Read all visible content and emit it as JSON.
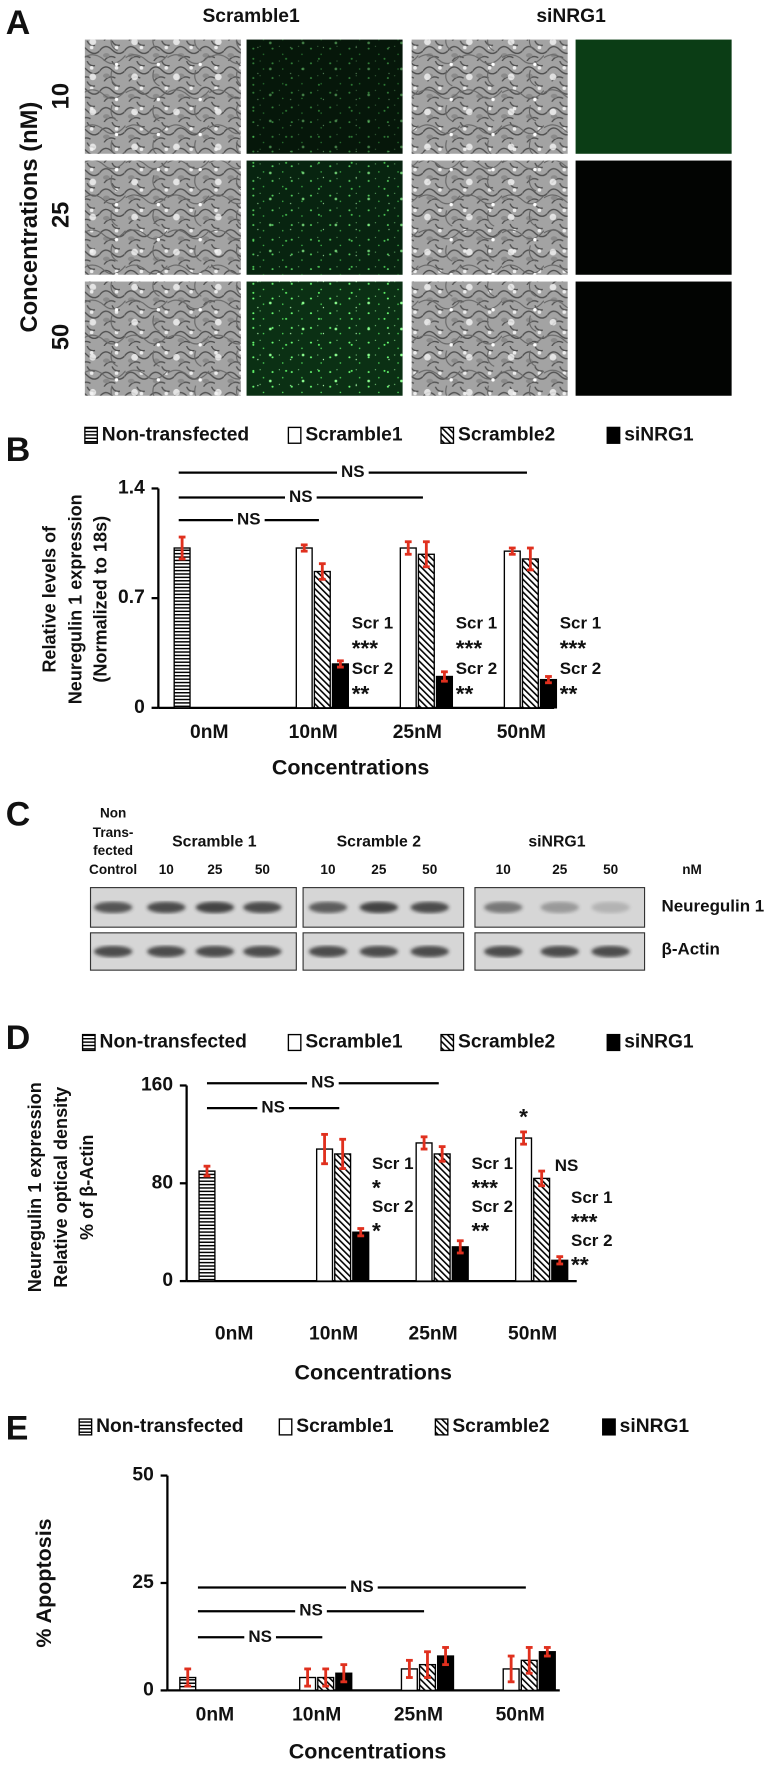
{
  "panel_a": {
    "label": "A",
    "col_headers": [
      "Scramble1",
      "siNRG1"
    ],
    "ylabel": "Concentrations (nM)",
    "rows": [
      "10",
      "25",
      "50"
    ]
  },
  "panel_c": {
    "label": "C",
    "control_label": [
      "Non",
      "Trans-",
      "fected",
      "Control"
    ],
    "groups": [
      {
        "name": "Scramble 1",
        "lanes": [
          "10",
          "25",
          "50"
        ]
      },
      {
        "name": "Scramble 2",
        "lanes": [
          "10",
          "25",
          "50"
        ]
      },
      {
        "name": "siNRG1",
        "lanes": [
          "10",
          "25",
          "50"
        ]
      }
    ],
    "unit": "nM",
    "rows": [
      "Neuregulin 1",
      "β-Actin"
    ]
  },
  "chart_data": [
    {
      "type": "bar",
      "panel": "B",
      "ylabel": [
        "Relative levels of",
        "Neuregulin 1 expression",
        "(Normalized to 18s)"
      ],
      "xlabel": "Concentrations",
      "categories": [
        "0nM",
        "10nM",
        "25nM",
        "50nM"
      ],
      "ylim": [
        0,
        1.4
      ],
      "yticks": [
        0,
        0.7,
        1.4
      ],
      "error_color": "#e0301e",
      "series": [
        {
          "name": "Non-transfected",
          "color": "#000000",
          "pattern": "horizontal",
          "values": [
            1.02,
            null,
            null,
            null
          ],
          "errors": [
            0.07,
            null,
            null,
            null
          ]
        },
        {
          "name": "Scramble1",
          "color": "#000000",
          "pattern": "none",
          "values": [
            null,
            1.02,
            1.02,
            1.0
          ],
          "errors": [
            null,
            0.02,
            0.04,
            0.02
          ]
        },
        {
          "name": "Scramble2",
          "color": "#000000",
          "pattern": "diagonal",
          "values": [
            null,
            0.87,
            0.98,
            0.95
          ],
          "errors": [
            null,
            0.05,
            0.08,
            0.07
          ]
        },
        {
          "name": "siNRG1",
          "color": "#000000",
          "pattern": "solid",
          "values": [
            null,
            0.28,
            0.2,
            0.18
          ],
          "errors": [
            null,
            0.02,
            0.03,
            0.02
          ]
        }
      ],
      "ns_brackets": [
        "NS",
        "NS",
        "NS"
      ],
      "star_labels": [
        null,
        [
          "Scr 1",
          "***",
          "Scr 2",
          "**"
        ],
        [
          "Scr 1",
          "***",
          "Scr 2",
          "**"
        ],
        [
          "Scr 1",
          "***",
          "Scr 2",
          "**"
        ]
      ]
    },
    {
      "type": "bar",
      "panel": "D",
      "ylabel": [
        "Neuregulin 1 expression",
        "Relative optical density",
        "% of β-Actin"
      ],
      "xlabel": "Concentrations",
      "categories": [
        "0nM",
        "10nM",
        "25nM",
        "50nM"
      ],
      "ylim": [
        0,
        160
      ],
      "yticks": [
        0,
        80,
        160
      ],
      "error_color": "#e0301e",
      "series": [
        {
          "name": "Non-transfected",
          "color": "#000000",
          "pattern": "horizontal",
          "values": [
            90,
            null,
            null,
            null
          ],
          "errors": [
            4,
            null,
            null,
            null
          ]
        },
        {
          "name": "Scramble1",
          "color": "#000000",
          "pattern": "none",
          "values": [
            null,
            108,
            113,
            117
          ],
          "errors": [
            null,
            12,
            5,
            5
          ]
        },
        {
          "name": "Scramble2",
          "color": "#000000",
          "pattern": "diagonal",
          "values": [
            null,
            104,
            104,
            84
          ],
          "errors": [
            null,
            12,
            6,
            6
          ]
        },
        {
          "name": "siNRG1",
          "color": "#000000",
          "pattern": "solid",
          "values": [
            null,
            40,
            28,
            17
          ],
          "errors": [
            null,
            3,
            5,
            3
          ]
        }
      ],
      "ns_brackets": [
        "NS",
        "NS"
      ],
      "star_labels": [
        null,
        [
          "Scr 1",
          "*",
          "Scr 2",
          "*"
        ],
        [
          "Scr 1",
          "***",
          "Scr 2",
          "**"
        ],
        [
          "Scr 1",
          "***",
          "Scr 2",
          "**"
        ]
      ],
      "top_labels": [
        null,
        null,
        null,
        [
          "*",
          "NS"
        ]
      ]
    },
    {
      "type": "bar",
      "panel": "E",
      "ylabel": [
        "% Apoptosis"
      ],
      "xlabel": "Concentrations",
      "categories": [
        "0nM",
        "10nM",
        "25nM",
        "50nM"
      ],
      "ylim": [
        0,
        50
      ],
      "yticks": [
        0,
        25,
        50
      ],
      "error_color": "#e0301e",
      "series": [
        {
          "name": "Non-transfected",
          "color": "#000000",
          "pattern": "horizontal",
          "values": [
            3,
            null,
            null,
            null
          ],
          "errors": [
            2,
            null,
            null,
            null
          ]
        },
        {
          "name": "Scramble1",
          "color": "#000000",
          "pattern": "none",
          "values": [
            null,
            3,
            5,
            5
          ],
          "errors": [
            null,
            2,
            2,
            3
          ]
        },
        {
          "name": "Scramble2",
          "color": "#000000",
          "pattern": "diagonal",
          "values": [
            null,
            3,
            6,
            7
          ],
          "errors": [
            null,
            2,
            3,
            3
          ]
        },
        {
          "name": "siNRG1",
          "color": "#000000",
          "pattern": "solid",
          "values": [
            null,
            4,
            8,
            9
          ],
          "errors": [
            null,
            2,
            2,
            1
          ]
        }
      ],
      "ns_brackets": [
        "NS",
        "NS",
        "NS"
      ]
    }
  ]
}
